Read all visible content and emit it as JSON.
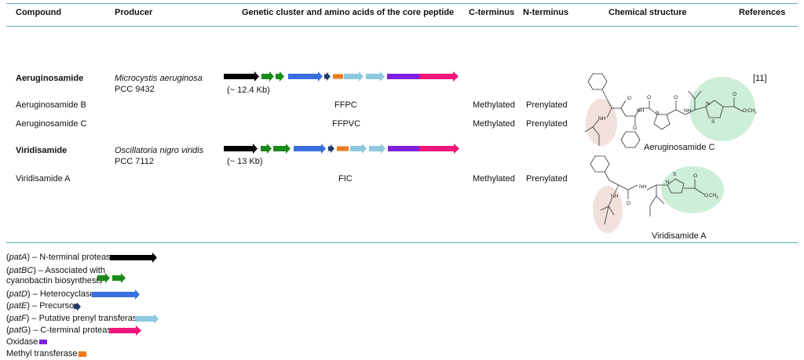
{
  "headers": {
    "compound": "Compound",
    "producer": "Producer",
    "cluster": "Genetic cluster and amino acids of the core peptide",
    "cterm": "C-terminus",
    "nterm": "N-terminus",
    "structure": "Chemical structure",
    "refs": "References"
  },
  "rows": [
    {
      "compound": "Aeruginosamide",
      "producer_name": "Microcystis aeruginosa",
      "producer_strain": "PCC 9432",
      "cluster_size": "(~ 12.4 Kb)",
      "reference": "[11]"
    },
    {
      "compound": "Aeruginosamide B",
      "core": "FFPC",
      "cterm": "Methylated",
      "nterm": "Prenylated"
    },
    {
      "compound": "Aeruginosamide C",
      "core": "FFPVC",
      "cterm": "Methylated",
      "nterm": "Prenylated"
    },
    {
      "compound": "Viridisamide",
      "producer_name": "Oscillatoria nigro viridis",
      "producer_strain": "PCC 7112",
      "cluster_size": "(~ 13 Kb)"
    },
    {
      "compound": "Viridisamide A",
      "core": "FIC",
      "cterm": "Methylated",
      "nterm": "Prenylated"
    }
  ],
  "structures": {
    "aeruginosamide_c": "Aeruginosamide C",
    "viridisamide_a": "Viridisamide A"
  },
  "atoms": {
    "nh": "NH",
    "n": "N",
    "s": "S",
    "o": "O",
    "ch3": "CH",
    "sub3": "3"
  },
  "legend": [
    {
      "gene": "patA",
      "prefix": "(",
      "suffix": ") – N-terminal protease",
      "color": "#000000"
    },
    {
      "gene": "patBC",
      "prefix": "(",
      "suffix": ") – Associated with",
      "line2": "cyanobactin biosynthesis",
      "color": "#1a8a1a"
    },
    {
      "gene": "patD",
      "prefix": "(",
      "suffix": ") – Heterocyclase",
      "color": "#3a6fe0"
    },
    {
      "gene": "patE",
      "prefix": "(",
      "suffix": ") – Precursor",
      "color": "#1f3b6b"
    },
    {
      "gene": "patF",
      "prefix": "(",
      "suffix": ") – Putative prenyl transferase",
      "color": "#8fc9e0"
    },
    {
      "gene": "pat",
      "gene_tail": "G",
      "prefix": "(",
      "suffix": ") – C-terminal protease",
      "color": "#f0167a"
    },
    {
      "label": "Oxidase",
      "color": "#7d1fe0"
    },
    {
      "label": "Methyl transferase",
      "color": "#f07a20"
    }
  ],
  "colors": {
    "rule": "#5aa9b6",
    "green_highlight": "#cdeed8",
    "pink_highlight": "#f2e0dc"
  }
}
